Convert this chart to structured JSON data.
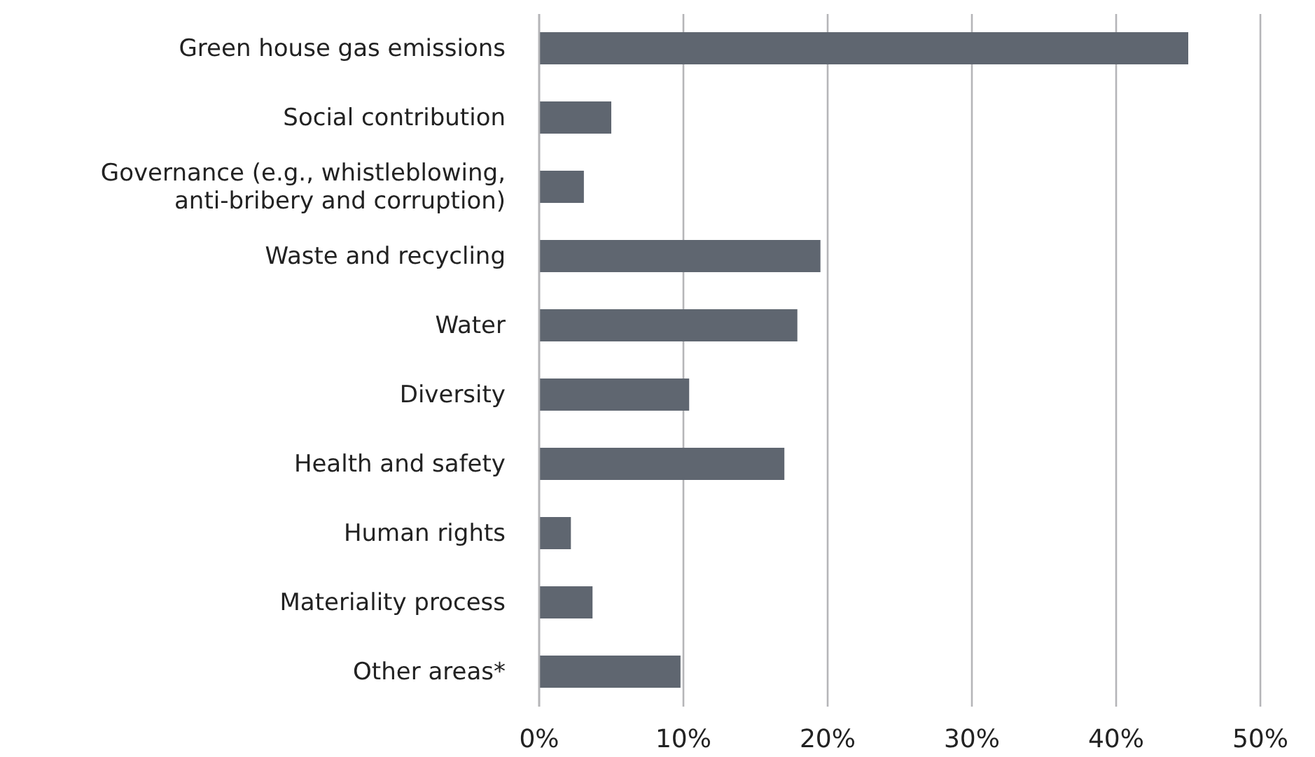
{
  "chart_data": {
    "type": "bar",
    "orientation": "horizontal",
    "categories": [
      "Green house gas emissions",
      "Social contribution",
      "Governance (e.g., whistleblowing, anti-bribery and corruption)",
      "Waste and recycling",
      "Water",
      "Diversity",
      "Health and safety",
      "Human rights",
      "Materiality process",
      "Other areas*"
    ],
    "values": [
      45,
      5,
      3.1,
      19.5,
      17.9,
      10.4,
      17,
      2.2,
      3.7,
      9.8
    ],
    "color": "#5f6670",
    "xlim": [
      0,
      50
    ],
    "xticks": [
      {
        "value": 0,
        "label": "0%"
      },
      {
        "value": 10,
        "label": "10%"
      },
      {
        "value": 20,
        "label": "20%"
      },
      {
        "value": 30,
        "label": "30%"
      },
      {
        "value": 40,
        "label": "40%"
      },
      {
        "value": 50,
        "label": "50%"
      }
    ],
    "grid": "x",
    "legend": false
  }
}
